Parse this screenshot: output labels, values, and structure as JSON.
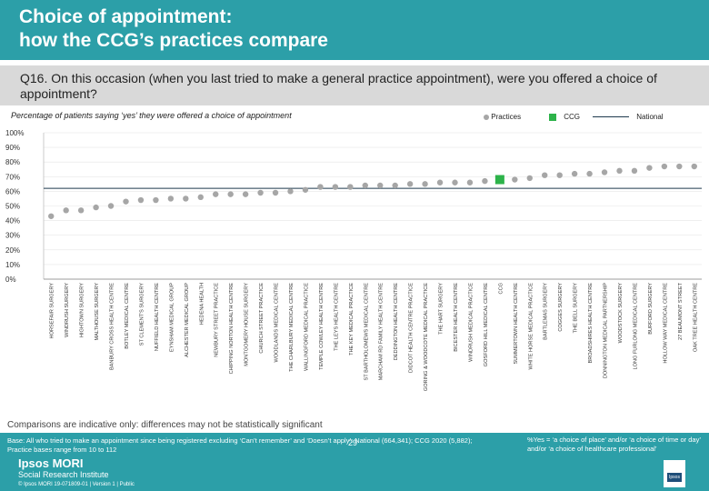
{
  "header": {
    "title": "Choice of appointment:\nhow the CCG’s practices compare",
    "question": "Q16. On this occasion (when you last tried to make a general practice appointment), were you offered a choice of appointment?",
    "subtitle": "Percentage of patients saying ‘yes’ they were offered a choice of appointment"
  },
  "legend": {
    "practices": "Practices",
    "ccg": "CCG",
    "national": "National"
  },
  "colors": {
    "teal": "#2c9fa8",
    "practice": "#a6a6a6",
    "ccg": "#2db34a",
    "national": "#1f3a4d"
  },
  "chart_data": {
    "type": "scatter",
    "title": "Percentage of patients saying ‘yes’ they were offered a choice of appointment",
    "ylim": [
      0,
      100
    ],
    "yticks": [
      "0%",
      "10%",
      "20%",
      "30%",
      "40%",
      "50%",
      "60%",
      "70%",
      "80%",
      "90%",
      "100%"
    ],
    "national": 62,
    "series": [
      {
        "name": "Practices",
        "points": [
          {
            "label": "HORSEFAIR SURGERY",
            "value": 43
          },
          {
            "label": "WINDRUSH SURGERY",
            "value": 47
          },
          {
            "label": "HIGHTOWN SURGERY",
            "value": 47
          },
          {
            "label": "MALTHOUSE SURGERY",
            "value": 49
          },
          {
            "label": "BANBURY CROSS HEALTH CENTRE",
            "value": 50
          },
          {
            "label": "BOTLEY MEDICAL CENTRE",
            "value": 53
          },
          {
            "label": "ST CLEMENT'S SURGERY",
            "value": 54
          },
          {
            "label": "NUFFIELD HEALTH CENTRE",
            "value": 54
          },
          {
            "label": "EYNSHAM MEDICAL GROUP",
            "value": 55
          },
          {
            "label": "ALCHESTER MEDICAL GROUP",
            "value": 55
          },
          {
            "label": "HEDENA HEALTH",
            "value": 56
          },
          {
            "label": "NEWBURY STREET PRACTICE",
            "value": 58
          },
          {
            "label": "CHIPPING NORTON HEALTH CENTRE",
            "value": 58
          },
          {
            "label": "MONTGOMERY HOUSE SURGERY",
            "value": 58
          },
          {
            "label": "CHURCH STREET PRACTICE",
            "value": 59
          },
          {
            "label": "WOODLANDS MEDICAL CENTRE",
            "value": 59
          },
          {
            "label": "THE CHARLBURY MEDICAL CENTRE",
            "value": 60
          },
          {
            "label": "WALLINGFORD MEDICAL PRACTICE",
            "value": 61
          },
          {
            "label": "TEMPLE COWLEY HEALTH CENTRE",
            "value": 63
          },
          {
            "label": "THE LEYS HEALTH CENTRE",
            "value": 63
          },
          {
            "label": "THE KEY MEDICAL PRACTICE",
            "value": 63
          },
          {
            "label": "ST BARTHOLOMEWS MEDICAL CENTRE",
            "value": 64
          },
          {
            "label": "MARCHAM RD FAMILY HEALTH CENTRE",
            "value": 64
          },
          {
            "label": "DEDDINGTON HEALTH CENTRE",
            "value": 64
          },
          {
            "label": "DIDCOT HEALTH CENTRE PRACTICE",
            "value": 65
          },
          {
            "label": "GORING & WOODCOTE MEDICAL PRACTICE",
            "value": 65
          },
          {
            "label": "THE HART SURGERY",
            "value": 66
          },
          {
            "label": "BICESTER HEALTH CENTRE",
            "value": 66
          },
          {
            "label": "WINDRUSH MEDICAL PRACTICE",
            "value": 66
          },
          {
            "label": "GOSFORD HILL MEDICAL CENTRE",
            "value": 67
          },
          {
            "label": "CCG",
            "value": 68,
            "ccg": true
          },
          {
            "label": "SUMMERTOWN HEALTH CENTRE",
            "value": 68
          },
          {
            "label": "WHITE HORSE MEDICAL PRACTICE",
            "value": 69
          },
          {
            "label": "BARTLEMAS SURGERY",
            "value": 71
          },
          {
            "label": "COGGES SURGERY",
            "value": 71
          },
          {
            "label": "THE BELL SURGERY",
            "value": 72
          },
          {
            "label": "BROADSHIRES HEALTH CENTRE",
            "value": 72
          },
          {
            "label": "DONNINGTON MEDICAL PARTNERSHIP",
            "value": 73
          },
          {
            "label": "WOODSTOCK SURGERY",
            "value": 74
          },
          {
            "label": "LONG FURLONG MEDICAL CENTRE",
            "value": 74
          },
          {
            "label": "BURFORD SURGERY",
            "value": 76
          },
          {
            "label": "HOLLOW WAY MEDICAL CENTRE",
            "value": 77
          },
          {
            "label": "27 BEAUMONT STREET",
            "value": 77
          },
          {
            "label": "OAK TREE HEALTH CENTRE",
            "value": 77
          }
        ]
      }
    ]
  },
  "caveat": "Comparisons are indicative only: differences may not be statistically significant",
  "footer": {
    "base": "Base: All who tried to make an appointment since being registered excluding ‘Can’t remember’ and ‘Doesn’t apply’: National (664,341); CCG 2020 (5,882); Practice bases range from 10 to 112",
    "note": "%Yes = ‘a choice of place’ and/or ‘a choice of time or day’ and/or ‘a choice of healthcare professional’",
    "logo_line1": "Ipsos MORI",
    "logo_line2": "Social Research Institute",
    "copyright": "© Ipsos MORI     19-071809-01 | Version 1 | Public",
    "page": "29",
    "corner_logo": "Ipsos"
  }
}
